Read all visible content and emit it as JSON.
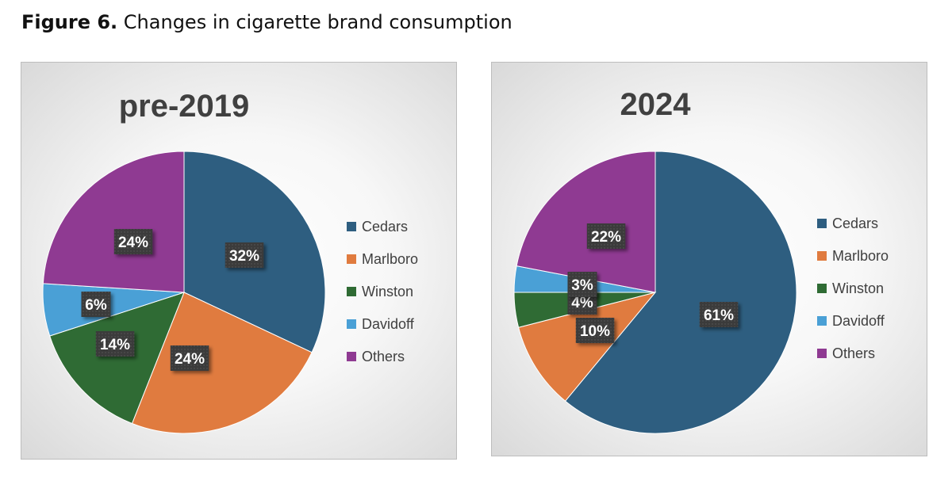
{
  "figure": {
    "label": "Figure 6.",
    "caption": " Changes in cigarette brand consumption"
  },
  "chart_data": [
    {
      "type": "pie",
      "title": "pre-2019",
      "categories": [
        "Cedars",
        "Marlboro",
        "Winston",
        "Davidoff",
        "Others"
      ],
      "values": [
        32,
        24,
        14,
        6,
        24
      ],
      "labels": [
        "32%",
        "24%",
        "14%",
        "6%",
        "24%"
      ],
      "colors": [
        "#2e5e80",
        "#e07b3f",
        "#2f6b34",
        "#4aa0d6",
        "#8f3a92"
      ],
      "legend_position": "right",
      "start_angle": "12 o'clock, clockwise"
    },
    {
      "type": "pie",
      "title": "2024",
      "categories": [
        "Cedars",
        "Marlboro",
        "Winston",
        "Davidoff",
        "Others"
      ],
      "values": [
        61,
        10,
        4,
        3,
        22
      ],
      "labels": [
        "61%",
        "10%",
        "4%",
        "3%",
        "22%"
      ],
      "colors": [
        "#2e5e80",
        "#e07b3f",
        "#2f6b34",
        "#4aa0d6",
        "#8f3a92"
      ],
      "legend_position": "right",
      "start_angle": "12 o'clock, clockwise"
    }
  ]
}
